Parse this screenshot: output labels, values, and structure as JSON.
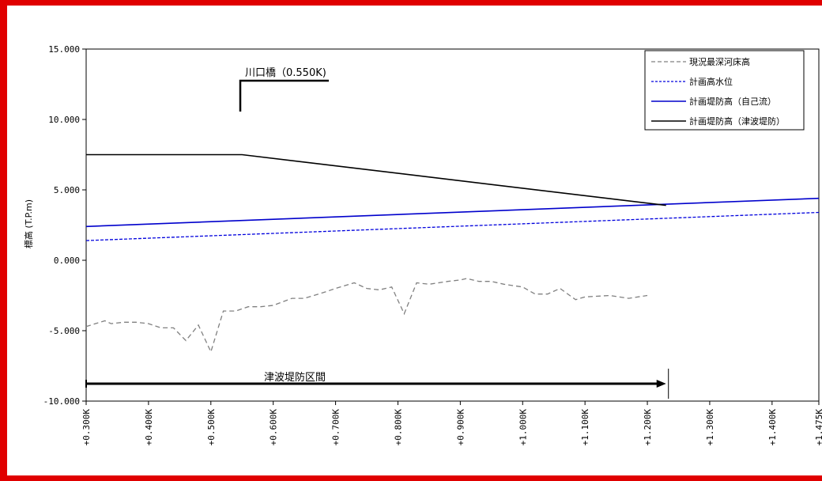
{
  "chart_data": {
    "type": "line",
    "ylabel": "標高 (T.P.m)",
    "ylim": [
      -10,
      15
    ],
    "xlim": [
      0.3,
      1.475
    ],
    "yticks": [
      "15.000",
      "10.000",
      "5.000",
      "0.000",
      "-5.000",
      "-10.000"
    ],
    "xticks": [
      "+0.300K",
      "+0.400K",
      "+0.500K",
      "+0.600K",
      "+0.700K",
      "+0.800K",
      "+0.900K",
      "+1.000K",
      "+1.100K",
      "+1.200K",
      "+1.300K",
      "+1.400K",
      "+1.475K"
    ],
    "legend_position": "top-right",
    "series": [
      {
        "name": "現況最深河床高",
        "color": "#808080",
        "style": "dashed",
        "points": [
          [
            0.3,
            -4.7
          ],
          [
            0.33,
            -4.3
          ],
          [
            0.34,
            -4.5
          ],
          [
            0.36,
            -4.4
          ],
          [
            0.38,
            -4.4
          ],
          [
            0.4,
            -4.5
          ],
          [
            0.42,
            -4.8
          ],
          [
            0.44,
            -4.8
          ],
          [
            0.46,
            -5.7
          ],
          [
            0.48,
            -4.6
          ],
          [
            0.5,
            -6.5
          ],
          [
            0.52,
            -3.6
          ],
          [
            0.54,
            -3.6
          ],
          [
            0.56,
            -3.3
          ],
          [
            0.58,
            -3.3
          ],
          [
            0.6,
            -3.2
          ],
          [
            0.63,
            -2.7
          ],
          [
            0.65,
            -2.7
          ],
          [
            0.68,
            -2.3
          ],
          [
            0.7,
            -2.0
          ],
          [
            0.73,
            -1.6
          ],
          [
            0.75,
            -2.0
          ],
          [
            0.77,
            -2.1
          ],
          [
            0.79,
            -1.9
          ],
          [
            0.81,
            -3.8
          ],
          [
            0.83,
            -1.6
          ],
          [
            0.85,
            -1.7
          ],
          [
            0.88,
            -1.5
          ],
          [
            0.9,
            -1.4
          ],
          [
            0.91,
            -1.3
          ],
          [
            0.93,
            -1.5
          ],
          [
            0.95,
            -1.5
          ],
          [
            0.97,
            -1.7
          ],
          [
            1.0,
            -1.9
          ],
          [
            1.02,
            -2.4
          ],
          [
            1.04,
            -2.4
          ],
          [
            1.06,
            -2.0
          ],
          [
            1.085,
            -2.8
          ],
          [
            1.1,
            -2.6
          ],
          [
            1.14,
            -2.5
          ],
          [
            1.17,
            -2.7
          ],
          [
            1.2,
            -2.5
          ]
        ]
      },
      {
        "name": "計画高水位",
        "color": "#0000dd",
        "style": "dashed",
        "points": [
          [
            0.3,
            1.4
          ],
          [
            1.475,
            3.4
          ]
        ]
      },
      {
        "name": "計画堤防高（自己流）",
        "color": "#0000cc",
        "style": "solid",
        "points": [
          [
            0.3,
            2.4
          ],
          [
            1.475,
            4.4
          ]
        ]
      },
      {
        "name": "計画堤防高（津波堤防）",
        "color": "#000000",
        "style": "solid",
        "points": [
          [
            0.3,
            7.5
          ],
          [
            0.55,
            7.5
          ],
          [
            1.23,
            3.9
          ]
        ]
      }
    ],
    "annotations": {
      "bridge": {
        "text": "川口橋（0.550K)",
        "x": 0.55
      },
      "tsunami_section": {
        "text": "津波堤防区間",
        "x_start": 0.3,
        "x_end": 1.23
      }
    }
  }
}
